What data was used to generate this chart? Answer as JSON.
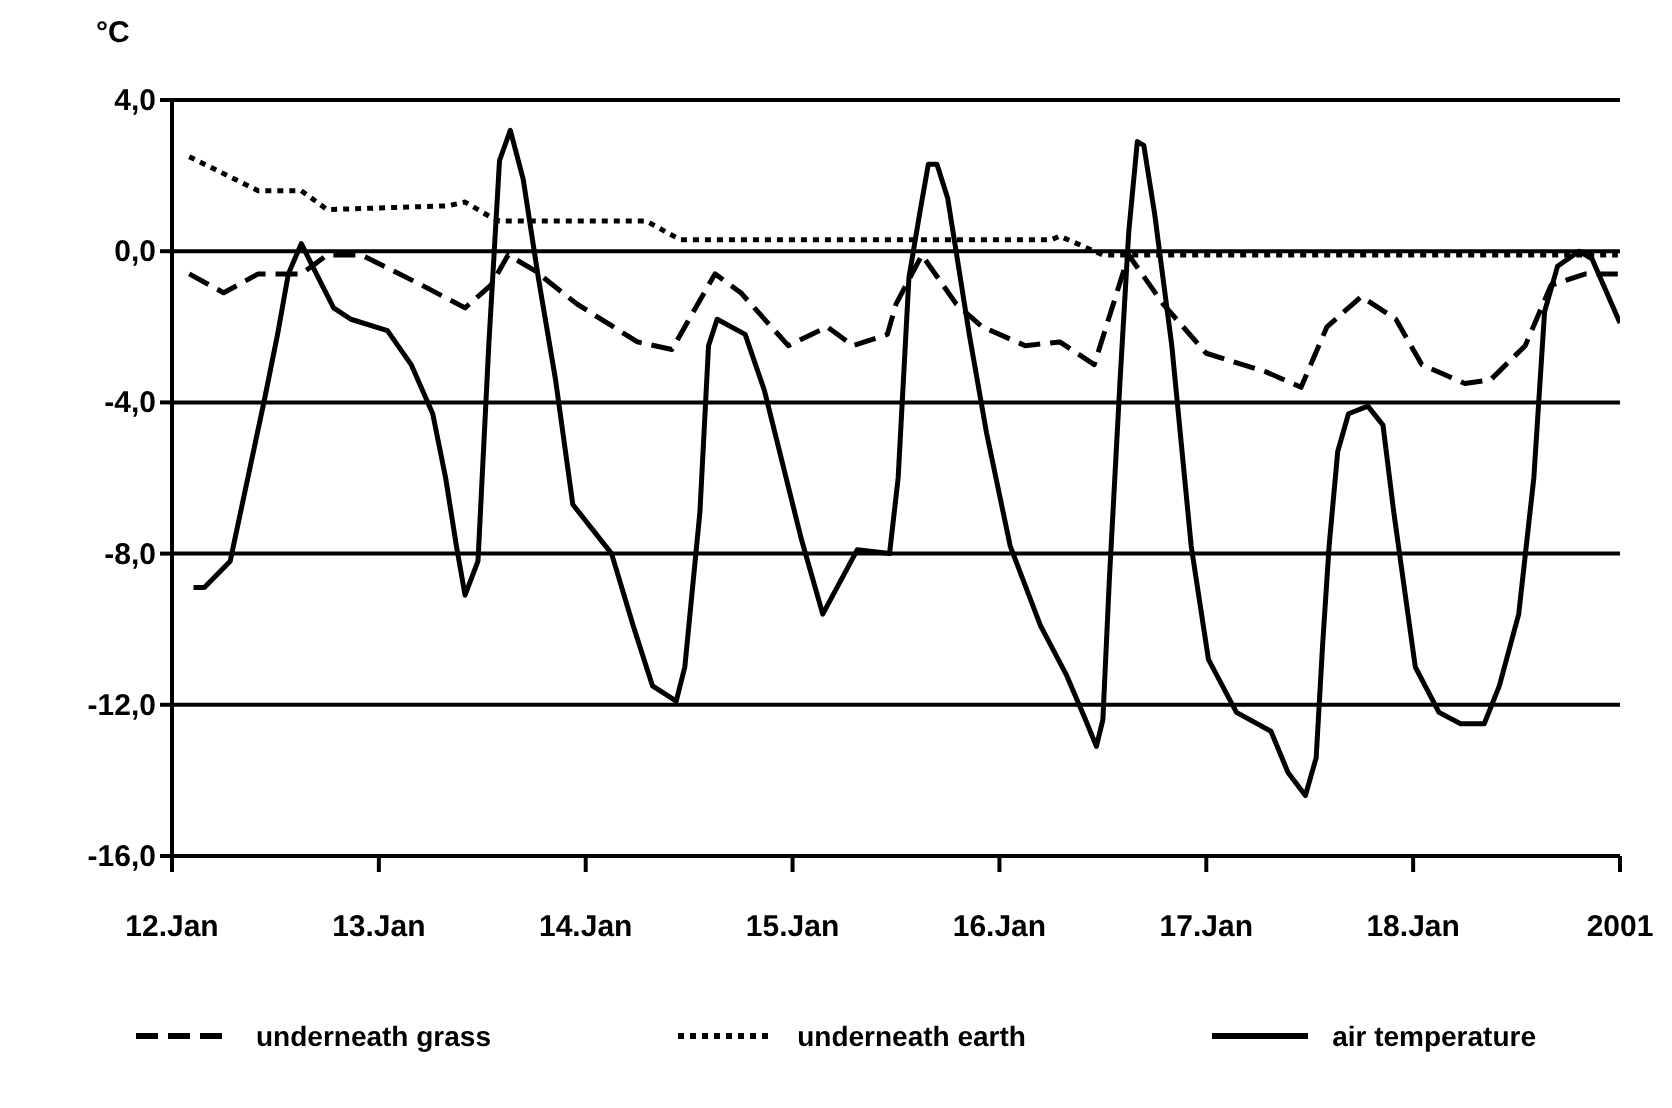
{
  "chart_data": {
    "type": "line",
    "ylabel": "°C",
    "xlim": [
      "2001-01-12",
      "2001-01-19"
    ],
    "ylim": [
      -16,
      4
    ],
    "xticks": [
      {
        "value": "2001-01-12",
        "label": "12.Jan"
      },
      {
        "value": "2001-01-13",
        "label": "13.Jan"
      },
      {
        "value": "2001-01-14",
        "label": "14.Jan"
      },
      {
        "value": "2001-01-15",
        "label": "15.Jan"
      },
      {
        "value": "2001-01-16",
        "label": "16.Jan"
      },
      {
        "value": "2001-01-17",
        "label": "17.Jan"
      },
      {
        "value": "2001-01-18",
        "label": "18.Jan"
      },
      {
        "value": "2001-01-19",
        "label": "2001"
      }
    ],
    "yticks": [
      {
        "value": -16,
        "label": "-16,0"
      },
      {
        "value": -12,
        "label": "-12,0"
      },
      {
        "value": -8,
        "label": "-8,0"
      },
      {
        "value": -4,
        "label": "-4,0"
      },
      {
        "value": 0,
        "label": "0,0"
      },
      {
        "value": 4,
        "label": "4,0"
      }
    ],
    "grid": "y",
    "legend": "bottom",
    "marker": "none",
    "series": [
      {
        "name": "underneath grass",
        "color": "#000000",
        "line_style": "dashed",
        "x": [
          "2001-01-12T02:00",
          "2001-01-12T06:00",
          "2001-01-12T10:00",
          "2001-01-12T15:00",
          "2001-01-12T18:00",
          "2001-01-12T22:00",
          "2001-01-13T05:00",
          "2001-01-13T10:00",
          "2001-01-13T13:00",
          "2001-01-13T15:00",
          "2001-01-13T18:00",
          "2001-01-13T23:00",
          "2001-01-14T06:00",
          "2001-01-14T10:00",
          "2001-01-14T15:00",
          "2001-01-14T18:00",
          "2001-01-14T23:30",
          "2001-01-15T04:00",
          "2001-01-15T07:00",
          "2001-01-15T11:00",
          "2001-01-15T12:00",
          "2001-01-15T15:00",
          "2001-01-15T19:00",
          "2001-01-15T22:00",
          "2001-01-16T03:00",
          "2001-01-16T07:00",
          "2001-01-16T11:00",
          "2001-01-16T15:00",
          "2001-01-16T19:00",
          "2001-01-17T00:00",
          "2001-01-17T07:00",
          "2001-01-17T11:00",
          "2001-01-17T14:00",
          "2001-01-17T18:00",
          "2001-01-17T22:00",
          "2001-01-18T01:00",
          "2001-01-18T06:00",
          "2001-01-18T09:00",
          "2001-01-18T13:00",
          "2001-01-18T16:00",
          "2001-01-18T20:00",
          "2001-01-18T23:45"
        ],
        "values": [
          -0.6,
          -1.1,
          -0.6,
          -0.6,
          -0.1,
          -0.1,
          -0.9,
          -1.5,
          -0.9,
          -0.1,
          -0.5,
          -1.4,
          -2.4,
          -2.6,
          -0.6,
          -1.1,
          -2.5,
          -2.0,
          -2.5,
          -2.2,
          -1.4,
          -0.1,
          -1.4,
          -2.0,
          -2.5,
          -2.4,
          -3.0,
          -0.1,
          -1.4,
          -2.7,
          -3.2,
          -3.6,
          -2.0,
          -1.2,
          -1.8,
          -3.0,
          -3.5,
          -3.4,
          -2.5,
          -0.9,
          -0.6,
          -0.6
        ]
      },
      {
        "name": "underneath earth",
        "color": "#000000",
        "line_style": "dotted",
        "x": [
          "2001-01-12T02:00",
          "2001-01-12T10:00",
          "2001-01-12T15:00",
          "2001-01-12T18:00",
          "2001-01-13T08:00",
          "2001-01-13T10:00",
          "2001-01-13T13:00",
          "2001-01-13T14:00",
          "2001-01-14T07:00",
          "2001-01-14T11:00",
          "2001-01-15T13:00",
          "2001-01-16T06:00",
          "2001-01-16T07:00",
          "2001-01-16T12:00",
          "2001-01-18T23:45"
        ],
        "values": [
          2.5,
          1.6,
          1.6,
          1.1,
          1.2,
          1.3,
          0.9,
          0.8,
          0.8,
          0.3,
          0.3,
          0.3,
          0.4,
          -0.1,
          -0.1
        ]
      },
      {
        "name": "air temperature",
        "color": "#000000",
        "line_style": "solid",
        "x": [
          "2001-01-12T02:30",
          "2001-01-12T03:45",
          "2001-01-12T06:45",
          "2001-01-12T10:45",
          "2001-01-12T12:15",
          "2001-01-12T13:30",
          "2001-01-12T15:00",
          "2001-01-12T16:45",
          "2001-01-12T18:45",
          "2001-01-12T20:45",
          "2001-01-13T01:00",
          "2001-01-13T03:45",
          "2001-01-13T06:15",
          "2001-01-13T07:45",
          "2001-01-13T09:00",
          "2001-01-13T10:00",
          "2001-01-13T11:30",
          "2001-01-13T12:45",
          "2001-01-13T14:00",
          "2001-01-13T15:15",
          "2001-01-13T16:45",
          "2001-01-13T18:30",
          "2001-01-13T20:30",
          "2001-01-13T22:30",
          "2001-01-14T03:00",
          "2001-01-14T05:30",
          "2001-01-14T07:45",
          "2001-01-14T10:30",
          "2001-01-14T11:30",
          "2001-01-14T13:15",
          "2001-01-14T14:15",
          "2001-01-14T15:15",
          "2001-01-14T18:30",
          "2001-01-14T20:45",
          "2001-01-15T01:00",
          "2001-01-15T03:30",
          "2001-01-15T07:30",
          "2001-01-15T11:15",
          "2001-01-15T12:15",
          "2001-01-15T13:30",
          "2001-01-15T14:45",
          "2001-01-15T15:45",
          "2001-01-15T16:45",
          "2001-01-15T18:00",
          "2001-01-15T20:30",
          "2001-01-15T22:30",
          "2001-01-16T01:15",
          "2001-01-16T04:45",
          "2001-01-16T07:45",
          "2001-01-16T10:00",
          "2001-01-16T11:15",
          "2001-01-16T12:00",
          "2001-01-16T12:45",
          "2001-01-16T14:00",
          "2001-01-16T15:00",
          "2001-01-16T16:00",
          "2001-01-16T16:45",
          "2001-01-16T18:00",
          "2001-01-16T20:00",
          "2001-01-16T22:15",
          "2001-01-17T00:15",
          "2001-01-17T03:30",
          "2001-01-17T07:30",
          "2001-01-17T09:30",
          "2001-01-17T11:30",
          "2001-01-17T12:45",
          "2001-01-17T13:30",
          "2001-01-17T14:15",
          "2001-01-17T15:15",
          "2001-01-17T16:30",
          "2001-01-17T18:45",
          "2001-01-17T20:30",
          "2001-01-17T21:45",
          "2001-01-18T00:15",
          "2001-01-18T03:00",
          "2001-01-18T05:30",
          "2001-01-18T08:15",
          "2001-01-18T10:00",
          "2001-01-18T12:15",
          "2001-01-18T14:00",
          "2001-01-18T15:15",
          "2001-01-18T16:45",
          "2001-01-18T19:15",
          "2001-01-18T20:45",
          "2001-01-19T00:00"
        ],
        "values": [
          -8.9,
          -8.9,
          -8.2,
          -3.9,
          -2.2,
          -0.6,
          0.2,
          -0.6,
          -1.5,
          -1.8,
          -2.1,
          -3.0,
          -4.3,
          -6.0,
          -7.8,
          -9.1,
          -8.2,
          -2.5,
          2.4,
          3.2,
          1.9,
          -0.7,
          -3.4,
          -6.7,
          -8.0,
          -9.9,
          -11.5,
          -11.9,
          -11.0,
          -6.9,
          -2.5,
          -1.8,
          -2.2,
          -3.7,
          -7.6,
          -9.6,
          -7.9,
          -8.0,
          -6.0,
          -0.7,
          1.0,
          2.3,
          2.3,
          1.4,
          -2.2,
          -4.8,
          -7.8,
          -9.9,
          -11.2,
          -12.4,
          -13.1,
          -12.4,
          -8.7,
          -3.4,
          0.5,
          2.9,
          2.8,
          1.0,
          -2.5,
          -7.8,
          -10.8,
          -12.2,
          -12.7,
          -13.8,
          -14.4,
          -13.4,
          -10.4,
          -7.8,
          -5.3,
          -4.3,
          -4.1,
          -4.6,
          -6.9,
          -11.0,
          -12.2,
          -12.5,
          -12.5,
          -11.5,
          -9.6,
          -6.0,
          -1.6,
          -0.4,
          0.0,
          -0.2,
          -1.9
        ]
      }
    ]
  }
}
